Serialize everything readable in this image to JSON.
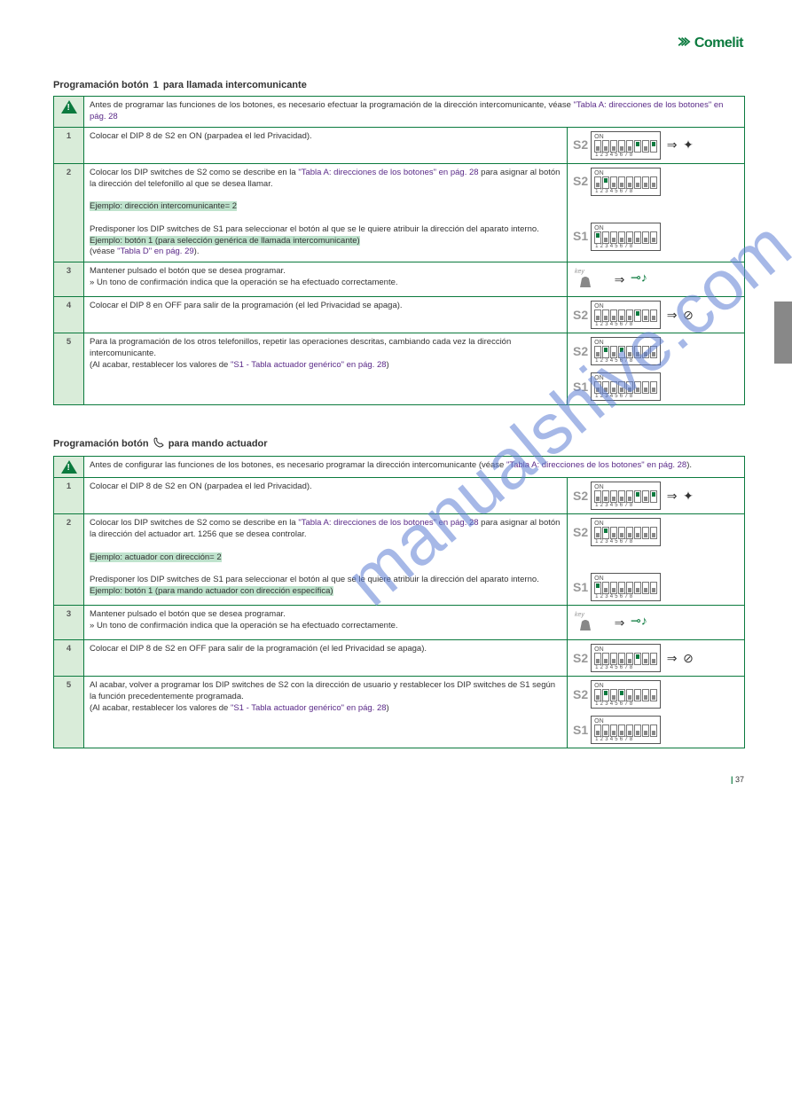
{
  "brand": "Comelit",
  "section1": {
    "title_prefix": "Programación botón",
    "title_suffix": "para llamada intercomunicante",
    "tables_ref": "\"Tabla A: direcciones de los botones\" en pág. 28",
    "step0": "Antes de programar las funciones de los botones, es necesario efectuar la programación de la dirección intercomunicante, véase ",
    "step1": "Colocar el DIP 8 de S2 en ON (parpadea el led Privacidad).",
    "step2a": "Colocar los DIP switches de S2 como se describe en la ",
    "step2b": " para asignar al botón la dirección del telefonillo al que se desea llamar.",
    "step2_hl": "Ejemplo: dirección intercomunicante= 2",
    "step2c": "Predisponer los DIP switches de S1 para seleccionar el botón al que se le quiere atribuir la dirección del aparato interno. ",
    "step2c_hl": "Ejemplo: botón 1 (para selección genérica de llamada intercomunicante)",
    "step2_ref": "(véase ",
    "step2_ref_link": "\"Tabla D\" en pág. 29",
    "step2_ref_end": ").",
    "step3": "Mantener pulsado el botón que se desea programar.",
    "step3b": "Un tono de confirmación indica que la operación se ha efectuado correctamente.",
    "step4": "Colocar el DIP 8 en OFF para salir de la programación (el led Privacidad se apaga).",
    "step5": "Para la programación de los otros telefonillos, repetir las operaciones descritas, cambiando cada vez la dirección intercomunicante.",
    "step5b": "(Al acabar, restablecer los valores de ",
    "step5_ref": "\"S1 - Tabla actuador genérico\" en pág. 28",
    "step5_end": ")"
  },
  "section2": {
    "title_prefix": "Programación botón",
    "title_suffix": "para mando actuador",
    "step0": "Antes de configurar las funciones de los botones, es necesario programar la dirección intercomunicante (véase ",
    "step0_ref": "\"Tabla A: direcciones de los botones\" en pág. 28",
    "step0_end": ").",
    "step1": "Colocar el DIP 8 de S2 en ON (parpadea el led Privacidad).",
    "step2a": "Colocar los DIP switches de S2 como se describe en la ",
    "step2a_ref": "\"Tabla A: direcciones de los botones\" en pág. 28",
    "step2b": " para asignar al botón la dirección del actuador art. 1256 que se desea controlar.",
    "step2_hl": "Ejemplo: actuador con dirección= 2",
    "step2c": "Predisponer los DIP switches de S1 para seleccionar el botón al que se le quiere atribuir la dirección del aparato interno. ",
    "step2c_hl": "Ejemplo: botón 1 (para mando actuador con dirección específica)",
    "step3": "Mantener pulsado el botón que se desea programar.",
    "step3b": "Un tono de confirmación indica que la operación se ha efectuado correctamente.",
    "step4": "Colocar el DIP 8 de S2 en OFF para salir de la programación (el led Privacidad se apaga).",
    "step5": "Al acabar, volver a programar los DIP switches de S2 con la dirección de usuario y restablecer los DIP switches de S1 según la función precedentemente programada.",
    "step5b": "(Al acabar, restablecer los valores de ",
    "step5_ref": "\"S1 - Tabla actuador genérico\" en pág. 28",
    "step5_end": ")"
  },
  "dip_s2_step1": [
    0,
    0,
    0,
    0,
    0,
    1,
    0,
    1
  ],
  "dip_s2_step2": [
    0,
    1,
    0,
    0,
    0,
    0,
    0,
    0
  ],
  "dip_s1_step2": [
    1,
    0,
    0,
    0,
    0,
    0,
    0,
    0
  ],
  "dip_s2_step4": [
    0,
    0,
    0,
    0,
    0,
    1,
    0,
    0
  ],
  "dip_s2_step5": [
    0,
    1,
    0,
    1,
    0,
    0,
    0,
    0
  ],
  "dip_s1_step5": [
    0,
    0,
    0,
    0,
    0,
    0,
    0,
    0
  ],
  "page_number": "37",
  "colors": {
    "brand_green": "#0b7a3e",
    "row_bg": "#d9ecd9",
    "highlight": "#bfe3cd",
    "link": "#5a2a88",
    "watermark": "#5e7fd4"
  }
}
